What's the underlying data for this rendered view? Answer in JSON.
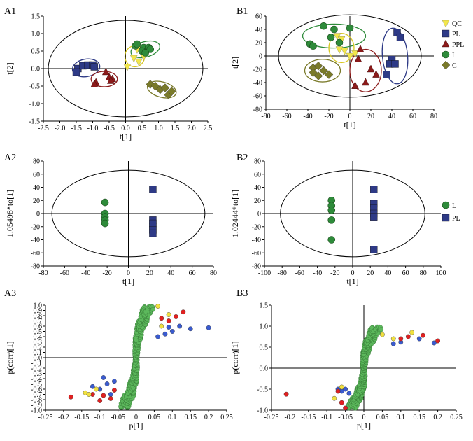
{
  "colors": {
    "qc": "#f2e64a",
    "pl": "#2e3a86",
    "ppl": "#8b1a1a",
    "l": "#2e8b3a",
    "c": "#7a7a2a",
    "green_pt": "#5cb85c",
    "red_pt": "#e02020",
    "blue_pt": "#3a5bd0",
    "yellow_pt": "#f0e040"
  },
  "chart_data": [
    {
      "panel": "A1",
      "type": "scatter",
      "xlabel": "t[1]",
      "ylabel": "t[2]",
      "xlim": [
        -2.5,
        2.5
      ],
      "ylim": [
        -1.5,
        1.5
      ],
      "xticks": [
        "-2.5",
        "-2.0",
        "-1.5",
        "-1.0",
        "-0.5",
        "0.0",
        "0.5",
        "1.0",
        "1.5",
        "2.0",
        "2.5"
      ],
      "yticks": [
        "1.5",
        "1.0",
        "0.5",
        "0.0",
        "-0.5",
        "-1.0",
        "-1.5"
      ],
      "series": [
        {
          "name": "QC",
          "marker": "tri-down",
          "color": "qc",
          "points": [
            [
              0.35,
              0.55
            ],
            [
              0.5,
              0.45
            ],
            [
              0.25,
              0.3
            ],
            [
              0.4,
              0.2
            ],
            [
              0.05,
              0.05
            ],
            [
              0.55,
              0.35
            ]
          ]
        },
        {
          "name": "PL",
          "marker": "square",
          "color": "pl",
          "points": [
            [
              -1.45,
              0.0
            ],
            [
              -1.3,
              0.08
            ],
            [
              -1.15,
              0.1
            ],
            [
              -1.0,
              0.1
            ],
            [
              -0.95,
              0.05
            ],
            [
              -1.5,
              -0.1
            ]
          ]
        },
        {
          "name": "PPL",
          "marker": "triangle",
          "color": "ppl",
          "points": [
            [
              -0.9,
              -0.4
            ],
            [
              -0.5,
              -0.25
            ],
            [
              -0.4,
              -0.3
            ],
            [
              -0.6,
              -0.1
            ],
            [
              -0.45,
              -0.35
            ],
            [
              -0.95,
              -0.45
            ]
          ]
        },
        {
          "name": "L",
          "marker": "circle",
          "color": "l",
          "points": [
            [
              0.3,
              0.65
            ],
            [
              0.55,
              0.6
            ],
            [
              0.7,
              0.6
            ],
            [
              0.75,
              0.55
            ],
            [
              0.5,
              0.5
            ],
            [
              0.6,
              0.45
            ],
            [
              0.35,
              0.7
            ]
          ]
        },
        {
          "name": "C",
          "marker": "diamond",
          "color": "c",
          "points": [
            [
              0.75,
              -0.45
            ],
            [
              0.9,
              -0.5
            ],
            [
              1.05,
              -0.6
            ],
            [
              1.2,
              -0.55
            ],
            [
              1.3,
              -0.75
            ],
            [
              1.4,
              -0.65
            ]
          ]
        }
      ],
      "ellipses": [
        {
          "cx": 0.6,
          "cy": 0.55,
          "rx": 0.45,
          "ry": 0.22,
          "rot": 15,
          "color": "l"
        },
        {
          "cx": 0.28,
          "cy": 0.35,
          "rx": 0.3,
          "ry": 0.3,
          "rot": 0,
          "color": "qc"
        },
        {
          "cx": -1.2,
          "cy": 0.02,
          "rx": 0.42,
          "ry": 0.25,
          "rot": 10,
          "color": "pl"
        },
        {
          "cx": -0.65,
          "cy": -0.3,
          "rx": 0.4,
          "ry": 0.22,
          "rot": 0,
          "color": "ppl"
        },
        {
          "cx": 1.1,
          "cy": -0.6,
          "rx": 0.45,
          "ry": 0.22,
          "rot": -15,
          "color": "c"
        }
      ],
      "hotelling": {
        "rx": 2.35,
        "ry": 1.38
      }
    },
    {
      "panel": "B1",
      "type": "scatter",
      "xlabel": "t[1]",
      "ylabel": "t[2]",
      "xlim": [
        -80,
        80
      ],
      "ylim": [
        -80,
        60
      ],
      "xticks": [
        "-80",
        "-60",
        "-40",
        "-20",
        "0",
        "20",
        "40",
        "60",
        "80"
      ],
      "yticks": [
        "60",
        "40",
        "20",
        "0",
        "-20",
        "-40",
        "-60",
        "-80"
      ],
      "series": [
        {
          "name": "QC",
          "marker": "tri-down",
          "color": "qc",
          "points": [
            [
              -12,
              30
            ],
            [
              -8,
              25
            ],
            [
              -10,
              10
            ],
            [
              -5,
              8
            ],
            [
              0,
              0
            ],
            [
              5,
              4
            ]
          ]
        },
        {
          "name": "PL",
          "marker": "square",
          "color": "pl",
          "points": [
            [
              45,
              35
            ],
            [
              48,
              28
            ],
            [
              40,
              -5
            ],
            [
              38,
              -12
            ],
            [
              35,
              -28
            ],
            [
              43,
              -12
            ]
          ]
        },
        {
          "name": "PPL",
          "marker": "triangle",
          "color": "ppl",
          "points": [
            [
              8,
              -5
            ],
            [
              10,
              10
            ],
            [
              20,
              -20
            ],
            [
              15,
              -40
            ],
            [
              5,
              -45
            ],
            [
              25,
              -28
            ]
          ]
        },
        {
          "name": "L",
          "marker": "circle",
          "color": "l",
          "points": [
            [
              -38,
              18
            ],
            [
              -35,
              15
            ],
            [
              -25,
              45
            ],
            [
              -15,
              40
            ],
            [
              -10,
              20
            ],
            [
              0,
              42
            ],
            [
              -18,
              28
            ]
          ]
        },
        {
          "name": "C",
          "marker": "diamond",
          "color": "c",
          "points": [
            [
              -35,
              -18
            ],
            [
              -30,
              -15
            ],
            [
              -25,
              -22
            ],
            [
              -30,
              -30
            ],
            [
              -20,
              -28
            ],
            [
              -35,
              -25
            ]
          ]
        }
      ],
      "ellipses": [
        {
          "cx": -15,
          "cy": 30,
          "rx": 30,
          "ry": 18,
          "rot": 0,
          "color": "l"
        },
        {
          "cx": -8,
          "cy": 12,
          "rx": 12,
          "ry": 22,
          "rot": 0,
          "color": "qc"
        },
        {
          "cx": 43,
          "cy": 0,
          "rx": 12,
          "ry": 42,
          "rot": 5,
          "color": "pl"
        },
        {
          "cx": 15,
          "cy": -22,
          "rx": 15,
          "ry": 32,
          "rot": 0,
          "color": "ppl"
        },
        {
          "cx": -26,
          "cy": -22,
          "rx": 17,
          "ry": 17,
          "rot": 0,
          "color": "c"
        }
      ],
      "hotelling": {
        "rx": 68,
        "ry": 62
      },
      "legend": [
        {
          "label": "QC",
          "marker": "tri-down",
          "color": "qc"
        },
        {
          "label": "PL",
          "marker": "square",
          "color": "pl"
        },
        {
          "label": "PPL",
          "marker": "triangle",
          "color": "ppl"
        },
        {
          "label": "L",
          "marker": "circle",
          "color": "l"
        },
        {
          "label": "C",
          "marker": "diamond",
          "color": "c"
        }
      ]
    },
    {
      "panel": "A2",
      "type": "scatter",
      "xlabel": "t[1]",
      "ylabel": "1.05498*to[1]",
      "xlim": [
        -80,
        80
      ],
      "ylim": [
        -80,
        80
      ],
      "xticks": [
        "-80",
        "-60",
        "-40",
        "-20",
        "0",
        "20",
        "40",
        "60",
        "80"
      ],
      "yticks": [
        "80",
        "60",
        "40",
        "20",
        "0",
        "-20",
        "-40",
        "-60",
        "-80"
      ],
      "series": [
        {
          "name": "L",
          "marker": "circle",
          "color": "l",
          "points": [
            [
              -22,
              17
            ],
            [
              -22,
              0
            ],
            [
              -22,
              -5
            ],
            [
              -22,
              -10
            ],
            [
              -22,
              -15
            ]
          ]
        },
        {
          "name": "PL",
          "marker": "square",
          "color": "pl",
          "points": [
            [
              23,
              37
            ],
            [
              23,
              -10
            ],
            [
              23,
              -15
            ],
            [
              23,
              -20
            ],
            [
              23,
              -25
            ],
            [
              23,
              -30
            ]
          ]
        }
      ],
      "hotelling": {
        "rx": 72,
        "ry": 66
      }
    },
    {
      "panel": "B2",
      "type": "scatter",
      "xlabel": "t[1]",
      "ylabel": "1.02444*to[1]",
      "xlim": [
        -100,
        100
      ],
      "ylim": [
        -80,
        80
      ],
      "xticks": [
        "-100",
        "-80",
        "-60",
        "-40",
        "-20",
        "0",
        "20",
        "40",
        "60",
        "80",
        "100"
      ],
      "yticks": [
        "80",
        "60",
        "40",
        "20",
        "0",
        "-20",
        "-40",
        "-60",
        "-80"
      ],
      "series": [
        {
          "name": "L",
          "marker": "circle",
          "color": "l",
          "points": [
            [
              -24,
              20
            ],
            [
              -24,
              12
            ],
            [
              -24,
              5
            ],
            [
              -24,
              -10
            ],
            [
              -24,
              -40
            ]
          ]
        },
        {
          "name": "PL",
          "marker": "square",
          "color": "pl",
          "points": [
            [
              24,
              37
            ],
            [
              24,
              15
            ],
            [
              24,
              8
            ],
            [
              24,
              0
            ],
            [
              24,
              -5
            ],
            [
              24,
              -55
            ]
          ]
        }
      ],
      "hotelling": {
        "rx": 82,
        "ry": 66
      },
      "legend": [
        {
          "label": "L",
          "marker": "circle",
          "color": "l"
        },
        {
          "label": "PL",
          "marker": "square",
          "color": "pl"
        }
      ]
    },
    {
      "panel": "A3",
      "type": "scatter",
      "xlabel": "p[1]",
      "ylabel": "p(corr)[1]",
      "xlim": [
        -0.25,
        0.25
      ],
      "ylim": [
        -1.0,
        1.0
      ],
      "xticks": [
        "-0.25",
        "-0.2",
        "-0.15",
        "-0.1",
        "-0.05",
        "0",
        "0.05",
        "0.1",
        "0.15",
        "0.2",
        "0.25"
      ],
      "yticks": [
        "1.0",
        "0.9",
        "0.8",
        "0.7",
        "0.6",
        "0.5",
        "0.4",
        "0.3",
        "0.2",
        "0.1",
        "0.0",
        "-0.1",
        "-0.2",
        "-0.3",
        "-0.4",
        "-0.5",
        "-0.6",
        "-0.7",
        "-0.8",
        "-0.9",
        "-1.0"
      ],
      "series": [
        {
          "name": "blue",
          "color": "blue_pt",
          "points": [
            [
              0.2,
              0.57
            ],
            [
              0.15,
              0.55
            ],
            [
              0.12,
              0.6
            ],
            [
              0.1,
              0.5
            ],
            [
              0.08,
              0.45
            ],
            [
              0.06,
              0.4
            ],
            [
              0.09,
              0.58
            ],
            [
              -0.12,
              -0.55
            ],
            [
              -0.1,
              -0.6
            ],
            [
              -0.08,
              -0.5
            ],
            [
              -0.06,
              -0.45
            ],
            [
              -0.09,
              -0.38
            ],
            [
              -0.07,
              -0.7
            ]
          ]
        },
        {
          "name": "red",
          "color": "red_pt",
          "points": [
            [
              0.13,
              0.87
            ],
            [
              0.11,
              0.78
            ],
            [
              0.09,
              0.7
            ],
            [
              0.07,
              0.75
            ],
            [
              -0.18,
              -0.75
            ],
            [
              -0.1,
              -0.82
            ],
            [
              -0.09,
              -0.72
            ],
            [
              -0.07,
              -0.78
            ],
            [
              -0.06,
              -0.62
            ],
            [
              -0.12,
              -0.7
            ]
          ]
        },
        {
          "name": "yellow",
          "color": "yellow_pt",
          "points": [
            [
              0.06,
              0.98
            ],
            [
              0.09,
              0.82
            ],
            [
              0.07,
              0.6
            ],
            [
              -0.14,
              -0.67
            ],
            [
              -0.13,
              -0.7
            ],
            [
              -0.11,
              -0.6
            ]
          ]
        }
      ],
      "green_band": {
        "color": "green_pt"
      }
    },
    {
      "panel": "B3",
      "type": "scatter",
      "xlabel": "p[1]",
      "ylabel": "p(corr)[1]",
      "xlim": [
        -0.25,
        0.25
      ],
      "ylim": [
        -1.0,
        1.5
      ],
      "xticks": [
        "-0.25",
        "-0.2",
        "-0.15",
        "-0.1",
        "-0.05",
        "0",
        "0.05",
        "0.1",
        "0.15",
        "0.2",
        "0.25"
      ],
      "yticks": [
        "1.5",
        "1.0",
        "0.5",
        "0.0",
        "-0.5",
        "-1.0"
      ],
      "series": [
        {
          "name": "blue",
          "color": "blue_pt",
          "points": [
            [
              0.19,
              0.6
            ],
            [
              0.15,
              0.7
            ],
            [
              0.1,
              0.62
            ],
            [
              0.08,
              0.58
            ],
            [
              -0.05,
              -0.5
            ],
            [
              -0.06,
              -0.55
            ],
            [
              -0.04,
              -0.6
            ],
            [
              -0.07,
              -0.5
            ]
          ]
        },
        {
          "name": "red",
          "color": "red_pt",
          "points": [
            [
              0.16,
              0.78
            ],
            [
              0.2,
              0.65
            ],
            [
              0.12,
              0.75
            ],
            [
              0.1,
              0.7
            ],
            [
              -0.21,
              -0.62
            ],
            [
              -0.05,
              -0.95
            ],
            [
              -0.07,
              -0.55
            ],
            [
              -0.06,
              -0.82
            ]
          ]
        },
        {
          "name": "yellow",
          "color": "yellow_pt",
          "points": [
            [
              0.13,
              0.85
            ],
            [
              0.08,
              0.7
            ],
            [
              0.05,
              0.8
            ],
            [
              -0.08,
              -0.72
            ],
            [
              -0.06,
              -0.45
            ]
          ]
        }
      ],
      "green_band": {
        "color": "green_pt"
      }
    }
  ]
}
